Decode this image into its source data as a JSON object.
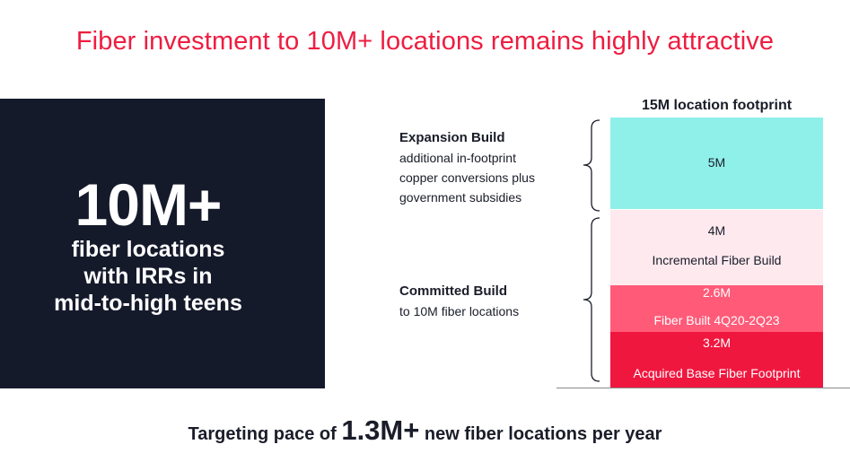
{
  "title": "Fiber investment to 10M+ locations remains highly attractive",
  "highlight": {
    "number": "10M+",
    "lines": [
      "fiber locations",
      "with IRRs in",
      "mid-to-high teens"
    ]
  },
  "stack": {
    "header": "15M location footprint",
    "segments": [
      {
        "value": "5M",
        "label": ""
      },
      {
        "value": "4M",
        "label": "Incremental Fiber Build"
      },
      {
        "value": "2.6M",
        "label": "Fiber Built 4Q20-2Q23"
      },
      {
        "value": "3.2M",
        "label": "Acquired Base Fiber Footprint"
      }
    ]
  },
  "brackets": {
    "expansion": {
      "heading": "Expansion Build",
      "lines": [
        "additional in-footprint",
        "copper conversions plus",
        "government subsidies"
      ]
    },
    "committed": {
      "heading": "Committed Build",
      "lines": [
        "to 10M fiber locations"
      ]
    }
  },
  "footer": {
    "prefix": "Targeting pace of",
    "value": "1.3M+",
    "suffix": "new fiber locations per year"
  }
}
